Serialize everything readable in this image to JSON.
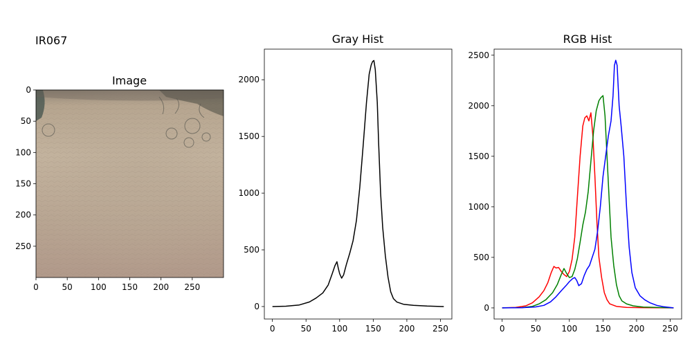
{
  "figure_title": "IR067",
  "chart_data": [
    {
      "type": "image",
      "title": "Image",
      "xlim": [
        0,
        300
      ],
      "ylim": [
        300,
        0
      ],
      "xticks": [
        0,
        50,
        100,
        150,
        200,
        250
      ],
      "yticks": [
        0,
        50,
        100,
        150,
        200,
        250
      ],
      "colors": {
        "skin_base": "#b8a690",
        "skin_center": "#c4b39d",
        "skin_lower": "#b49a88",
        "hair": "#3b3a35",
        "hair_blue": "#48564f"
      }
    },
    {
      "type": "line",
      "title": "Gray Hist",
      "xlim": [
        -12,
        267
      ],
      "ylim": [
        -110,
        2270
      ],
      "xticks": [
        0,
        50,
        100,
        150,
        200,
        250
      ],
      "yticks": [
        0,
        500,
        1000,
        1500,
        2000
      ],
      "series": [
        {
          "color": "#000000",
          "points": [
            [
              0,
              0
            ],
            [
              20,
              3
            ],
            [
              40,
              14
            ],
            [
              55,
              40
            ],
            [
              65,
              75
            ],
            [
              75,
              120
            ],
            [
              83,
              190
            ],
            [
              89,
              290
            ],
            [
              93,
              360
            ],
            [
              96,
              395
            ],
            [
              98,
              340
            ],
            [
              100,
              290
            ],
            [
              103,
              250
            ],
            [
              106,
              280
            ],
            [
              110,
              370
            ],
            [
              115,
              470
            ],
            [
              120,
              580
            ],
            [
              125,
              760
            ],
            [
              130,
              1050
            ],
            [
              135,
              1420
            ],
            [
              140,
              1800
            ],
            [
              144,
              2050
            ],
            [
              147,
              2130
            ],
            [
              149,
              2160
            ],
            [
              151,
              2170
            ],
            [
              153,
              2090
            ],
            [
              156,
              1800
            ],
            [
              158,
              1450
            ],
            [
              161,
              1000
            ],
            [
              164,
              700
            ],
            [
              168,
              450
            ],
            [
              172,
              260
            ],
            [
              176,
              130
            ],
            [
              180,
              70
            ],
            [
              185,
              40
            ],
            [
              195,
              20
            ],
            [
              210,
              10
            ],
            [
              230,
              4
            ],
            [
              255,
              0
            ]
          ]
        }
      ]
    },
    {
      "type": "line",
      "title": "RGB Hist",
      "xlim": [
        -12,
        267
      ],
      "ylim": [
        -110,
        2560
      ],
      "xticks": [
        0,
        50,
        100,
        150,
        200,
        250
      ],
      "yticks": [
        0,
        500,
        1000,
        1500,
        2000,
        2500
      ],
      "series": [
        {
          "color": "#ff0000",
          "points": [
            [
              0,
              0
            ],
            [
              20,
              5
            ],
            [
              35,
              20
            ],
            [
              45,
              50
            ],
            [
              55,
              110
            ],
            [
              62,
              170
            ],
            [
              68,
              250
            ],
            [
              73,
              350
            ],
            [
              77,
              410
            ],
            [
              80,
              395
            ],
            [
              84,
              400
            ],
            [
              88,
              360
            ],
            [
              92,
              330
            ],
            [
              96,
              310
            ],
            [
              100,
              360
            ],
            [
              104,
              480
            ],
            [
              108,
              700
            ],
            [
              112,
              1100
            ],
            [
              116,
              1500
            ],
            [
              120,
              1800
            ],
            [
              123,
              1880
            ],
            [
              126,
              1900
            ],
            [
              129,
              1850
            ],
            [
              132,
              1930
            ],
            [
              135,
              1700
            ],
            [
              138,
              1300
            ],
            [
              141,
              850
            ],
            [
              144,
              500
            ],
            [
              148,
              300
            ],
            [
              152,
              150
            ],
            [
              156,
              80
            ],
            [
              160,
              40
            ],
            [
              170,
              15
            ],
            [
              185,
              5
            ],
            [
              210,
              2
            ],
            [
              255,
              0
            ]
          ]
        },
        {
          "color": "#008000",
          "points": [
            [
              0,
              0
            ],
            [
              30,
              3
            ],
            [
              45,
              15
            ],
            [
              55,
              40
            ],
            [
              65,
              80
            ],
            [
              75,
              150
            ],
            [
              82,
              230
            ],
            [
              88,
              330
            ],
            [
              92,
              390
            ],
            [
              96,
              340
            ],
            [
              100,
              300
            ],
            [
              104,
              310
            ],
            [
              108,
              380
            ],
            [
              112,
              490
            ],
            [
              116,
              650
            ],
            [
              120,
              820
            ],
            [
              124,
              950
            ],
            [
              128,
              1150
            ],
            [
              132,
              1450
            ],
            [
              136,
              1750
            ],
            [
              140,
              1950
            ],
            [
              144,
              2050
            ],
            [
              147,
              2080
            ],
            [
              150,
              2100
            ],
            [
              153,
              1900
            ],
            [
              156,
              1500
            ],
            [
              159,
              1100
            ],
            [
              162,
              700
            ],
            [
              166,
              420
            ],
            [
              170,
              230
            ],
            [
              174,
              120
            ],
            [
              178,
              70
            ],
            [
              185,
              40
            ],
            [
              195,
              20
            ],
            [
              210,
              8
            ],
            [
              255,
              0
            ]
          ]
        },
        {
          "color": "#0000ff",
          "points": [
            [
              0,
              0
            ],
            [
              30,
              2
            ],
            [
              50,
              10
            ],
            [
              62,
              25
            ],
            [
              72,
              60
            ],
            [
              80,
              110
            ],
            [
              88,
              170
            ],
            [
              95,
              220
            ],
            [
              100,
              260
            ],
            [
              105,
              290
            ],
            [
              108,
              300
            ],
            [
              111,
              270
            ],
            [
              114,
              220
            ],
            [
              118,
              240
            ],
            [
              122,
              320
            ],
            [
              126,
              380
            ],
            [
              130,
              420
            ],
            [
              134,
              500
            ],
            [
              138,
              580
            ],
            [
              142,
              760
            ],
            [
              146,
              1000
            ],
            [
              150,
              1300
            ],
            [
              154,
              1500
            ],
            [
              158,
              1700
            ],
            [
              162,
              1850
            ],
            [
              165,
              2100
            ],
            [
              167,
              2400
            ],
            [
              169,
              2450
            ],
            [
              171,
              2400
            ],
            [
              174,
              2000
            ],
            [
              177,
              1800
            ],
            [
              181,
              1500
            ],
            [
              185,
              1000
            ],
            [
              189,
              600
            ],
            [
              193,
              350
            ],
            [
              198,
              200
            ],
            [
              205,
              120
            ],
            [
              212,
              80
            ],
            [
              220,
              50
            ],
            [
              230,
              25
            ],
            [
              240,
              12
            ],
            [
              255,
              0
            ]
          ]
        }
      ]
    }
  ]
}
